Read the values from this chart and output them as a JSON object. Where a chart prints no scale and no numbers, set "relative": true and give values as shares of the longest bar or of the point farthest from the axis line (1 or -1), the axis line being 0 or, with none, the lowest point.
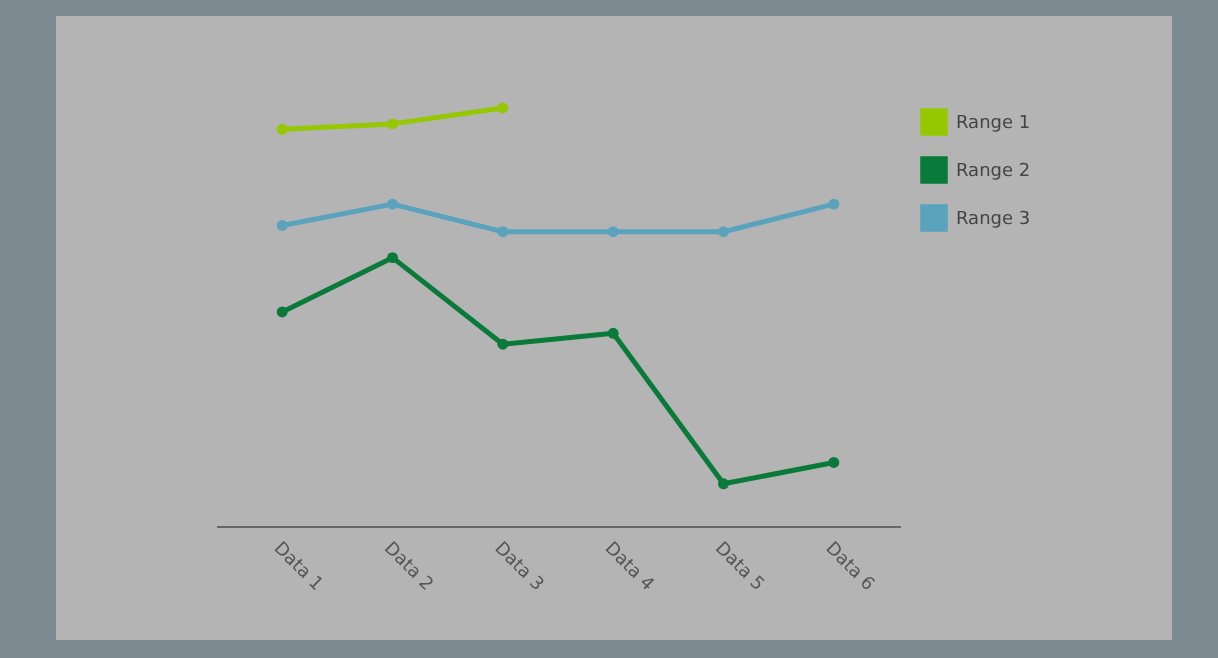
{
  "chart_data": {
    "type": "line",
    "relative": true,
    "categories": [
      "Data 1",
      "Data 2",
      "Data 3",
      "Data 4",
      "Data 5",
      "Data 6"
    ],
    "series": [
      {
        "name": "Range 1",
        "color": "#95c800",
        "values": [
          0.949,
          0.962,
          1,
          null,
          null,
          null
        ]
      },
      {
        "name": "Range 2",
        "color": "#0a7a3a",
        "values": [
          0.512,
          0.642,
          0.435,
          0.461,
          0.101,
          0.152
        ]
      },
      {
        "name": "Range 3",
        "color": "#5aa3bd",
        "values": [
          0.719,
          0.77,
          0.704,
          0.704,
          0.704,
          0.77
        ]
      }
    ],
    "legend": "right",
    "marker": "circle",
    "grid": false
  }
}
